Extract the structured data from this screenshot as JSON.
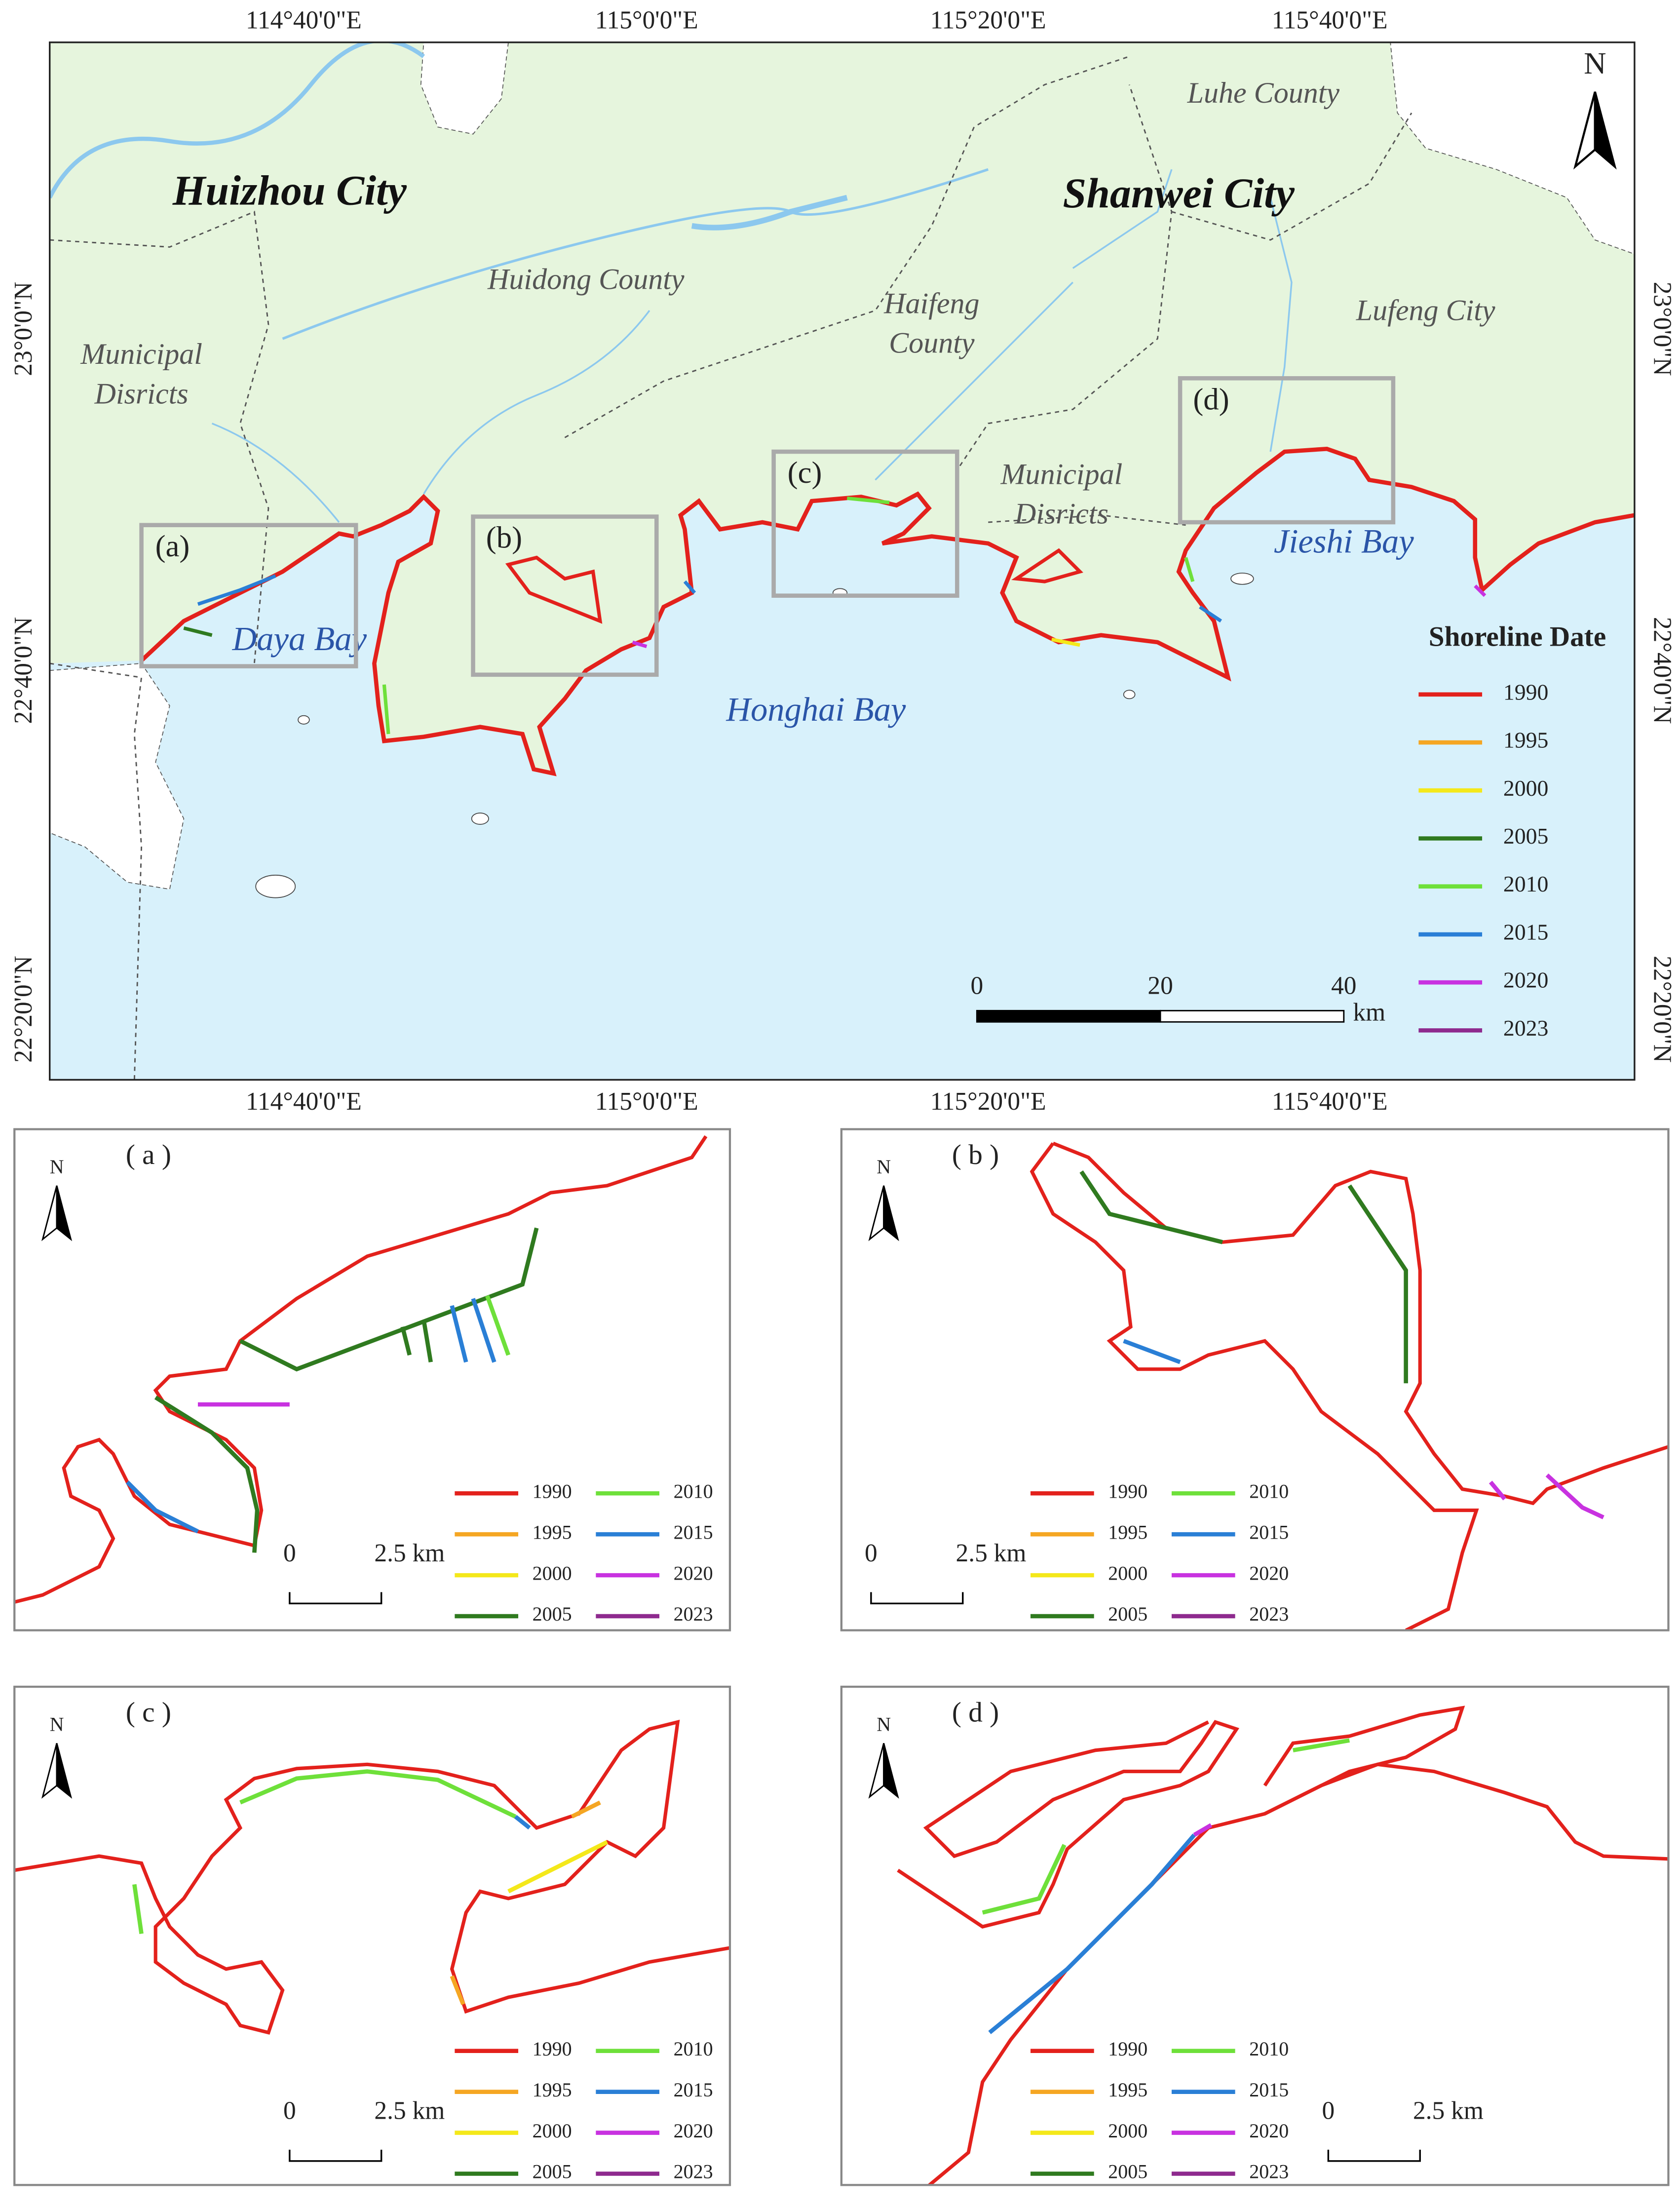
{
  "main_map": {
    "lon_labels": [
      "114°40'0\"E",
      "115°0'0\"E",
      "115°20'0\"E",
      "115°40'0\"E"
    ],
    "lat_labels": [
      "23°0'0\"N",
      "22°40'0\"N",
      "22°20'0\"N"
    ],
    "cities": [
      "Huizhou City",
      "Shanwei City"
    ],
    "counties": [
      [
        "Luhe County"
      ],
      [
        "Huidong County"
      ],
      [
        "Haifeng",
        "County"
      ],
      [
        "Lufeng City"
      ],
      [
        "Municipal",
        "Disricts"
      ],
      [
        "Municipal",
        "Disricts"
      ]
    ],
    "bays": [
      "Daya Bay",
      "Honghai Bay",
      "Jieshi Bay"
    ],
    "boxes": [
      "(a)",
      "(b)",
      "(c)",
      "(d)"
    ],
    "north": "N",
    "legend_title": "Shoreline Date",
    "scale_bar": {
      "ticks": [
        0,
        20,
        40
      ],
      "unit": "km"
    }
  },
  "legend": [
    {
      "year": "1990",
      "color": "#e3211c"
    },
    {
      "year": "1995",
      "color": "#f5a623"
    },
    {
      "year": "2000",
      "color": "#f4e81a"
    },
    {
      "year": "2005",
      "color": "#2f7a1f"
    },
    {
      "year": "2010",
      "color": "#6ee03a"
    },
    {
      "year": "2015",
      "color": "#2a7fd6"
    },
    {
      "year": "2020",
      "color": "#c832e0"
    },
    {
      "year": "2023",
      "color": "#8e2a8e"
    }
  ],
  "panels": [
    {
      "label": "( a )",
      "north": "N",
      "scale": [
        "0",
        "2.5 km"
      ]
    },
    {
      "label": "( b )",
      "north": "N",
      "scale": [
        "0",
        "2.5 km"
      ]
    },
    {
      "label": "( c )",
      "north": "N",
      "scale": [
        "0",
        "2.5 km"
      ]
    },
    {
      "label": "( d )",
      "north": "N",
      "scale": [
        "0",
        "2.5 km"
      ]
    }
  ]
}
